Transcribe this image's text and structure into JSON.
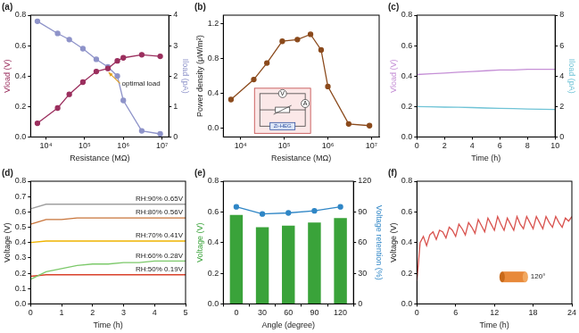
{
  "chart_data": [
    {
      "type": "line",
      "title": "(a)",
      "xlabel": "Resistance (MΩ)",
      "ylabel": "Vload (V)",
      "y2label": "Iload (pA)",
      "log": "x",
      "grid": false,
      "x": [
        6000,
        20000,
        40000,
        90000,
        200000,
        400000,
        700000,
        1000000,
        3000000,
        9000000
      ],
      "series": [
        {
          "color": "#9b2f5e",
          "marker": "circle",
          "values": [
            0.09,
            0.19,
            0.28,
            0.36,
            0.43,
            0.45,
            0.5,
            0.52,
            0.54,
            0.53
          ]
        },
        {
          "color": "#8e93c9",
          "marker": "circle",
          "axis": "y2",
          "values": [
            3.8,
            3.4,
            3.2,
            2.9,
            2.55,
            2.3,
            2.0,
            1.2,
            0.2,
            0.1
          ]
        }
      ],
      "xlim": [
        4000,
        15000000
      ],
      "xticks": [
        {
          "value": 10000,
          "label": "10⁴"
        },
        {
          "value": 100000,
          "label": "10⁵"
        },
        {
          "value": 1000000,
          "label": "10⁶"
        },
        {
          "value": 10000000,
          "label": "10⁷"
        }
      ],
      "ylim": [
        0,
        0.8
      ],
      "yticks": [
        {
          "value": 0,
          "label": "0.0"
        },
        0.2,
        0.4,
        0.6,
        0.8
      ],
      "y2lim": [
        0,
        4
      ],
      "y2ticks": [
        0,
        1,
        2,
        3,
        4
      ],
      "annotations": [
        "optimal load"
      ]
    },
    {
      "type": "line",
      "title": "(b)",
      "xlabel": "Resistance (MΩ)",
      "ylabel": "Power density (μW/m²)",
      "log": "x",
      "grid": false,
      "x": [
        6000,
        20000,
        40000,
        90000,
        200000,
        400000,
        700000,
        1000000,
        3000000,
        9000000
      ],
      "series": [
        {
          "color": "#8b4a1c",
          "marker": "circle",
          "values": [
            0.33,
            0.56,
            0.75,
            1.0,
            1.02,
            1.08,
            0.9,
            0.48,
            0.05,
            0.03
          ]
        }
      ],
      "xlim": [
        4000,
        15000000
      ],
      "xticks": [
        {
          "value": 10000,
          "label": "10⁴"
        },
        {
          "value": 100000,
          "label": "10⁵"
        },
        {
          "value": 1000000,
          "label": "10⁶"
        },
        {
          "value": 10000000,
          "label": "10⁷"
        }
      ],
      "ylim": [
        -0.1,
        1.3
      ],
      "yticks": [
        {
          "value": 0,
          "label": "0.0"
        },
        0.4,
        0.8,
        1.2
      ],
      "annotations": [
        "V",
        "A",
        "Zi-HEG"
      ]
    },
    {
      "type": "line",
      "title": "(c)",
      "xlabel": "Time (h)",
      "ylabel": "Vload (V)",
      "y2label": "Iload (pA)",
      "grid": false,
      "x": [
        0,
        1,
        2,
        3,
        4,
        5,
        6,
        7,
        8,
        9,
        10
      ],
      "series": [
        {
          "color": "#c58fd6",
          "marker": "none",
          "values": [
            0.41,
            0.415,
            0.42,
            0.425,
            0.43,
            0.435,
            0.44,
            0.44,
            0.445,
            0.445,
            0.445
          ]
        },
        {
          "color": "#6fc3d6",
          "marker": "none",
          "axis": "y2",
          "values": [
            2.0,
            1.98,
            1.96,
            1.95,
            1.93,
            1.9,
            1.88,
            1.86,
            1.84,
            1.82,
            1.8
          ]
        }
      ],
      "xlim": [
        0,
        10
      ],
      "xticks": [
        0,
        2,
        4,
        6,
        8,
        10
      ],
      "ylim": [
        0,
        0.8
      ],
      "yticks": [
        {
          "value": 0,
          "label": "0.0"
        },
        0.2,
        0.4,
        0.6,
        0.8
      ],
      "y2lim": [
        0,
        8
      ],
      "y2ticks": [
        0,
        2,
        4,
        6,
        8
      ]
    },
    {
      "type": "line",
      "title": "(d)",
      "xlabel": "Time (h)",
      "ylabel": "Voltage (V)",
      "grid": false,
      "x": [
        0,
        0.5,
        1,
        1.5,
        2,
        2.5,
        3,
        3.5,
        4,
        4.5,
        5
      ],
      "series": [
        {
          "color": "#a0a0a0",
          "marker": "none",
          "values": [
            0.62,
            0.65,
            0.65,
            0.65,
            0.65,
            0.65,
            0.65,
            0.65,
            0.65,
            0.65,
            0.65
          ]
        },
        {
          "color": "#c8743a",
          "marker": "none",
          "values": [
            0.52,
            0.55,
            0.55,
            0.56,
            0.56,
            0.56,
            0.56,
            0.56,
            0.56,
            0.56,
            0.56
          ]
        },
        {
          "color": "#f0b400",
          "marker": "none",
          "values": [
            0.4,
            0.41,
            0.41,
            0.41,
            0.41,
            0.41,
            0.41,
            0.41,
            0.41,
            0.41,
            0.41
          ]
        },
        {
          "color": "#7cc96a",
          "marker": "none",
          "values": [
            0.16,
            0.21,
            0.23,
            0.25,
            0.26,
            0.26,
            0.27,
            0.27,
            0.28,
            0.28,
            0.28
          ]
        },
        {
          "color": "#d9412b",
          "marker": "none",
          "values": [
            0.18,
            0.19,
            0.19,
            0.19,
            0.19,
            0.19,
            0.19,
            0.19,
            0.19,
            0.19,
            0.19
          ]
        }
      ],
      "xlim": [
        0,
        5
      ],
      "xticks": [
        0,
        1,
        2,
        3,
        4,
        5
      ],
      "ylim": [
        0,
        0.8
      ],
      "yticks": [
        {
          "value": 0,
          "label": "0.0"
        },
        0.1,
        0.2,
        0.3,
        0.4,
        0.5,
        0.6,
        0.7,
        0.8
      ],
      "annotations": [
        "RH:90% 0.65V",
        "RH:80% 0.56V",
        "RH:70% 0.41V",
        "RH:60% 0.28V",
        "RH:50% 0.19V"
      ]
    },
    {
      "type": "bar",
      "title": "(e)",
      "xlabel": "Angle (degree)",
      "ylabel": "Voltage (V)",
      "y2label": "Voltage retention (%)",
      "grid": false,
      "categories": [
        "0",
        "30",
        "60",
        "90",
        "120"
      ],
      "series": [
        {
          "type": "bar",
          "color": "#3aa33a",
          "values": [
            0.58,
            0.5,
            0.51,
            0.53,
            0.56
          ]
        },
        {
          "type": "line",
          "color": "#2f86c6",
          "marker": "circle",
          "axis": "y2",
          "values": [
            95,
            88,
            89,
            91,
            95
          ]
        }
      ],
      "ylim": [
        0,
        0.8
      ],
      "yticks": [
        {
          "value": 0,
          "label": "0.0"
        },
        0.2,
        0.4,
        0.6,
        0.8
      ],
      "y2lim": [
        0,
        120
      ],
      "y2ticks": [
        0,
        30,
        60,
        90,
        120
      ]
    },
    {
      "type": "line",
      "title": "(f)",
      "xlabel": "Time (h)",
      "ylabel": "Voltage (V)",
      "grid": false,
      "x": [
        0,
        0.5,
        1,
        1.5,
        2,
        2.5,
        3,
        3.5,
        4,
        4.5,
        5,
        5.5,
        6,
        6.5,
        7,
        7.5,
        8,
        8.5,
        9,
        9.5,
        10,
        10.5,
        11,
        11.5,
        12,
        12.5,
        13,
        13.5,
        14,
        14.5,
        15,
        15.5,
        16,
        16.5,
        17,
        17.5,
        18,
        18.5,
        19,
        19.5,
        20,
        20.5,
        21,
        21.5,
        22,
        22.5,
        23,
        23.5,
        24
      ],
      "series": [
        {
          "color": "#d9534f",
          "marker": "none",
          "values": [
            0.15,
            0.4,
            0.44,
            0.38,
            0.45,
            0.47,
            0.42,
            0.48,
            0.47,
            0.43,
            0.5,
            0.48,
            0.44,
            0.52,
            0.49,
            0.45,
            0.53,
            0.5,
            0.46,
            0.55,
            0.51,
            0.47,
            0.56,
            0.52,
            0.48,
            0.57,
            0.52,
            0.48,
            0.56,
            0.52,
            0.48,
            0.57,
            0.52,
            0.49,
            0.57,
            0.53,
            0.49,
            0.57,
            0.53,
            0.49,
            0.57,
            0.53,
            0.5,
            0.57,
            0.53,
            0.5,
            0.56,
            0.54,
            0.57
          ]
        }
      ],
      "xlim": [
        0,
        24
      ],
      "xticks": [
        0,
        6,
        12,
        18,
        24
      ],
      "ylim": [
        0,
        0.8
      ],
      "yticks": [
        {
          "value": 0,
          "label": "0.0"
        },
        0.2,
        0.4,
        0.6,
        0.8
      ],
      "annotations": [
        "120°"
      ]
    }
  ]
}
